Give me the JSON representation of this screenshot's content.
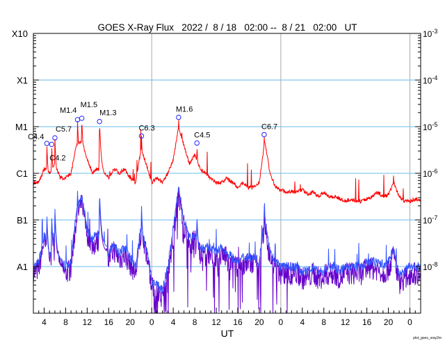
{
  "chart_data": {
    "type": "line",
    "title": "GOES X-Ray Flux   2022 /  8 / 18   02:00 --  8 / 21   02:00   UT",
    "xlabel": "UT",
    "footer": "plot_goes_xray2m",
    "x_range_hours": [
      0,
      72
    ],
    "x_ticks": {
      "hours": [
        2,
        6,
        10,
        14,
        18,
        22,
        26,
        30,
        34,
        38,
        42,
        46,
        50,
        54,
        58,
        62,
        66,
        70
      ],
      "labels": [
        "4",
        "8",
        "12",
        "16",
        "20",
        "0",
        "4",
        "8",
        "12",
        "16",
        "20",
        "0",
        "4",
        "8",
        "12",
        "16",
        "20",
        "0"
      ]
    },
    "day_boundaries_hours": [
      22,
      46,
      70
    ],
    "ylim_log10": [
      -9,
      -3
    ],
    "y_left_labels": [
      {
        "log": -3,
        "label": "X10"
      },
      {
        "log": -4,
        "label": "X1"
      },
      {
        "log": -5,
        "label": "M1"
      },
      {
        "log": -6,
        "label": "C1"
      },
      {
        "log": -7,
        "label": "B1"
      },
      {
        "log": -8,
        "label": "A1"
      }
    ],
    "y_right_labels": [
      {
        "log": -3,
        "label": "10",
        "exp": "-3"
      },
      {
        "log": -4,
        "label": "10",
        "exp": "-4"
      },
      {
        "log": -5,
        "label": "10",
        "exp": "-5"
      },
      {
        "log": -6,
        "label": "10",
        "exp": "-6"
      },
      {
        "log": -7,
        "label": "10",
        "exp": "-7"
      },
      {
        "log": -8,
        "label": "10",
        "exp": "-8"
      }
    ],
    "colors": {
      "long": "#ff0000",
      "short": "#3355ff",
      "short2": "#6600cc",
      "grid": "#66bbee",
      "day": "#aaaaaa",
      "marker": "#2222ff"
    },
    "flares": [
      {
        "hour": 2.5,
        "log": -5.36,
        "label": "C4.4"
      },
      {
        "hour": 3.4,
        "log": -5.38,
        "label": "C4.2"
      },
      {
        "hour": 4.0,
        "log": -5.24,
        "label": "C5.7"
      },
      {
        "hour": 8.2,
        "log": -4.85,
        "label": "M1.4"
      },
      {
        "hour": 9.0,
        "log": -4.82,
        "label": "M1.5"
      },
      {
        "hour": 12.3,
        "log": -4.89,
        "label": "M1.3"
      },
      {
        "hour": 20.1,
        "log": -5.2,
        "label": "C6.3"
      },
      {
        "hour": 27.0,
        "log": -4.8,
        "label": "M1.6"
      },
      {
        "hour": 30.4,
        "log": -5.35,
        "label": "C4.5"
      },
      {
        "hour": 42.9,
        "log": -5.17,
        "label": "C6.7"
      }
    ],
    "series": [
      {
        "name": "long (1-8 A)",
        "values_log10_hourly": [
          -6.2,
          -6.2,
          -5.9,
          -6.0,
          -5.8,
          -6.1,
          -6.1,
          -6.0,
          -5.4,
          -5.3,
          -5.7,
          -6.0,
          -5.9,
          -6.0,
          -6.1,
          -5.9,
          -6.0,
          -5.9,
          -6.1,
          -6.2,
          -5.5,
          -5.8,
          -6.2,
          -6.1,
          -6.2,
          -6.0,
          -5.7,
          -5.0,
          -5.4,
          -5.8,
          -5.6,
          -5.9,
          -6.0,
          -6.1,
          -6.2,
          -6.2,
          -6.1,
          -6.2,
          -6.3,
          -6.2,
          -6.3,
          -6.3,
          -6.2,
          -5.3,
          -6.0,
          -6.3,
          -6.35,
          -6.4,
          -6.4,
          -6.4,
          -6.35,
          -6.45,
          -6.4,
          -6.5,
          -6.4,
          -6.5,
          -6.5,
          -6.55,
          -6.6,
          -6.55,
          -6.6,
          -6.6,
          -6.55,
          -6.5,
          -6.4,
          -6.5,
          -6.45,
          -6.2,
          -6.5,
          -6.6,
          -6.6,
          -6.55,
          -6.6
        ]
      },
      {
        "name": "short (0.5-4 A)",
        "values_log10_hourly": [
          -8.0,
          -7.9,
          -7.3,
          -7.8,
          -7.5,
          -7.9,
          -8.0,
          -7.9,
          -6.8,
          -6.5,
          -7.2,
          -7.4,
          -7.3,
          -7.6,
          -7.7,
          -7.5,
          -7.7,
          -7.6,
          -7.8,
          -8.0,
          -7.2,
          -7.6,
          -8.3,
          -8.4,
          -8.5,
          -8.0,
          -7.2,
          -6.3,
          -7.0,
          -7.4,
          -7.3,
          -7.6,
          -7.6,
          -7.6,
          -7.7,
          -7.6,
          -7.7,
          -7.8,
          -7.9,
          -7.8,
          -7.8,
          -7.8,
          -7.9,
          -6.9,
          -7.7,
          -7.9,
          -8.0,
          -8.0,
          -8.0,
          -8.0,
          -8.1,
          -8.1,
          -8.0,
          -8.1,
          -8.1,
          -8.0,
          -8.0,
          -8.1,
          -8.0,
          -8.0,
          -8.0,
          -8.0,
          -7.9,
          -7.9,
          -7.9,
          -8.0,
          -7.9,
          -7.6,
          -8.2,
          -8.1,
          -8.0,
          -8.0,
          -8.0
        ]
      }
    ]
  }
}
